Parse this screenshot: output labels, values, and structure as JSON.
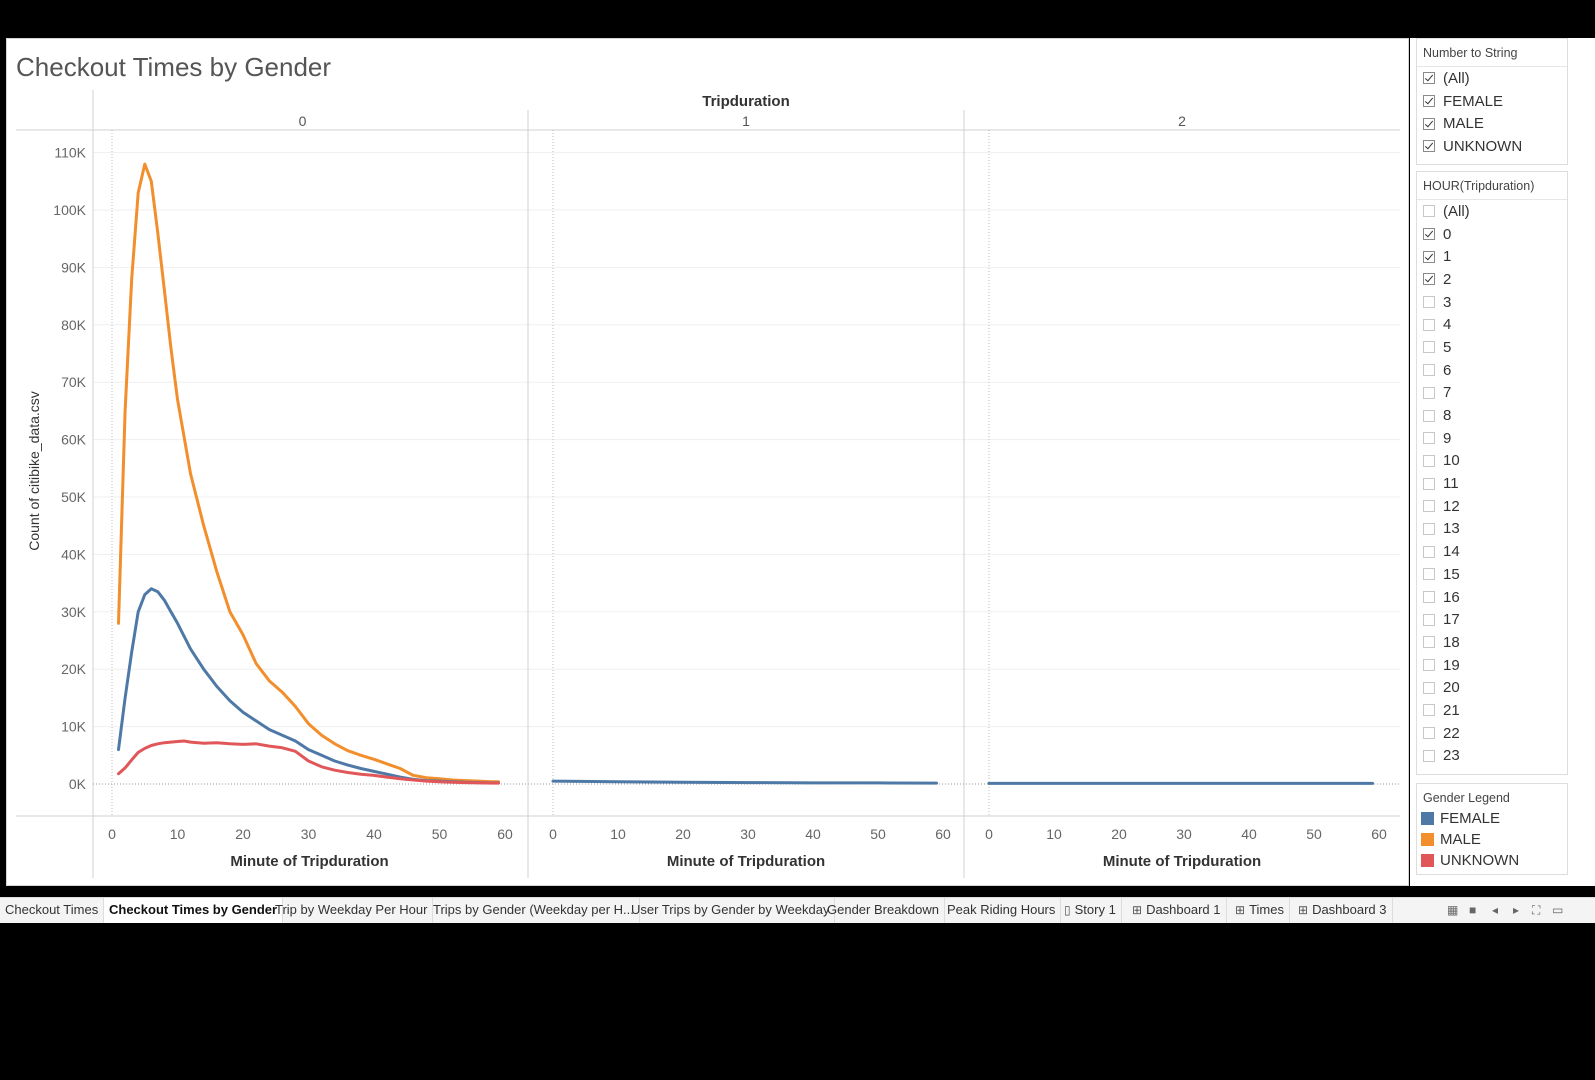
{
  "page": {
    "title": "Checkout Times by Gender"
  },
  "chart_data": {
    "type": "line",
    "title": "Checkout Times by Gender",
    "column_header": "Tripduration",
    "panels": [
      "0",
      "1",
      "2"
    ],
    "xlabel": "Minute of Tripduration",
    "ylabel": "Count of citibike_data.csv",
    "xlim": [
      0,
      60
    ],
    "ylim": [
      0,
      110000
    ],
    "x_ticks": [
      "0",
      "10",
      "20",
      "30",
      "40",
      "50",
      "60"
    ],
    "y_ticks": [
      "0K",
      "10K",
      "20K",
      "30K",
      "40K",
      "50K",
      "60K",
      "70K",
      "80K",
      "90K",
      "100K",
      "110K"
    ],
    "colors": {
      "FEMALE": "#4e79a7",
      "MALE": "#f28e2b",
      "UNKNOWN": "#e15759"
    },
    "series": [
      {
        "name": "MALE",
        "panel": "0",
        "x": [
          1,
          2,
          3,
          4,
          5,
          6,
          7,
          8,
          9,
          10,
          12,
          14,
          16,
          18,
          20,
          22,
          24,
          26,
          28,
          30,
          32,
          34,
          36,
          38,
          40,
          42,
          44,
          46,
          48,
          50,
          52,
          54,
          56,
          58,
          59
        ],
        "y": [
          28000,
          65000,
          88000,
          103000,
          108000,
          105000,
          96000,
          86000,
          76000,
          67000,
          54000,
          45000,
          37000,
          30000,
          26000,
          21000,
          18000,
          16000,
          13500,
          10500,
          8500,
          7000,
          5800,
          5000,
          4300,
          3500,
          2700,
          1500,
          1100,
          900,
          700,
          600,
          500,
          400,
          400
        ]
      },
      {
        "name": "FEMALE",
        "panel": "0",
        "x": [
          1,
          2,
          3,
          4,
          5,
          6,
          7,
          8,
          9,
          10,
          12,
          14,
          16,
          18,
          20,
          22,
          24,
          26,
          28,
          30,
          32,
          34,
          36,
          38,
          40,
          42,
          44,
          46,
          48,
          50,
          52,
          54,
          56,
          58,
          59
        ],
        "y": [
          6000,
          15000,
          23000,
          30000,
          33000,
          34000,
          33500,
          32000,
          30000,
          28000,
          23500,
          20000,
          17000,
          14500,
          12500,
          11000,
          9500,
          8500,
          7500,
          6000,
          5000,
          4000,
          3300,
          2700,
          2200,
          1700,
          1200,
          800,
          600,
          500,
          400,
          300,
          250,
          200,
          200
        ]
      },
      {
        "name": "UNKNOWN",
        "panel": "0",
        "x": [
          1,
          2,
          3,
          4,
          5,
          6,
          7,
          8,
          9,
          10,
          11,
          12,
          14,
          16,
          18,
          20,
          22,
          24,
          26,
          28,
          30,
          32,
          34,
          36,
          38,
          40,
          42,
          44,
          46,
          48,
          50,
          52,
          54,
          56,
          58,
          59
        ],
        "y": [
          1800,
          2800,
          4200,
          5500,
          6200,
          6700,
          7000,
          7200,
          7300,
          7400,
          7500,
          7300,
          7100,
          7200,
          7000,
          6900,
          7000,
          6600,
          6300,
          5700,
          4000,
          3000,
          2400,
          2000,
          1700,
          1500,
          1200,
          900,
          700,
          500,
          400,
          300,
          250,
          200,
          150,
          150
        ]
      },
      {
        "name": "FEMALE",
        "panel": "1",
        "x": [
          0,
          10,
          20,
          30,
          40,
          50,
          59
        ],
        "y": [
          500,
          400,
          300,
          250,
          200,
          200,
          150
        ]
      },
      {
        "name": "FEMALE",
        "panel": "2",
        "x": [
          0,
          10,
          20,
          30,
          40,
          50,
          59
        ],
        "y": [
          100,
          100,
          100,
          100,
          100,
          100,
          100
        ]
      }
    ]
  },
  "filters": [
    {
      "title": "Number to String",
      "items": [
        {
          "label": "(All)",
          "checked": true
        },
        {
          "label": "FEMALE",
          "checked": true
        },
        {
          "label": "MALE",
          "checked": true
        },
        {
          "label": "UNKNOWN",
          "checked": true
        }
      ]
    },
    {
      "title": "HOUR(Tripduration)",
      "items": [
        {
          "label": "(All)",
          "checked": false
        },
        {
          "label": "0",
          "checked": true
        },
        {
          "label": "1",
          "checked": true
        },
        {
          "label": "2",
          "checked": true
        },
        {
          "label": "3",
          "checked": false
        },
        {
          "label": "4",
          "checked": false
        },
        {
          "label": "5",
          "checked": false
        },
        {
          "label": "6",
          "checked": false
        },
        {
          "label": "7",
          "checked": false
        },
        {
          "label": "8",
          "checked": false
        },
        {
          "label": "9",
          "checked": false
        },
        {
          "label": "10",
          "checked": false
        },
        {
          "label": "11",
          "checked": false
        },
        {
          "label": "12",
          "checked": false
        },
        {
          "label": "13",
          "checked": false
        },
        {
          "label": "14",
          "checked": false
        },
        {
          "label": "15",
          "checked": false
        },
        {
          "label": "16",
          "checked": false
        },
        {
          "label": "17",
          "checked": false
        },
        {
          "label": "18",
          "checked": false
        },
        {
          "label": "19",
          "checked": false
        },
        {
          "label": "20",
          "checked": false
        },
        {
          "label": "21",
          "checked": false
        },
        {
          "label": "22",
          "checked": false
        },
        {
          "label": "23",
          "checked": false
        }
      ]
    }
  ],
  "legend": {
    "title": "Gender Legend",
    "items": [
      {
        "label": "FEMALE",
        "color": "#4e79a7"
      },
      {
        "label": "MALE",
        "color": "#f28e2b"
      },
      {
        "label": "UNKNOWN",
        "color": "#e15759"
      }
    ]
  },
  "tabs": [
    {
      "label": "Checkout Times",
      "active": false,
      "icon": ""
    },
    {
      "label": "Checkout Times by Gender",
      "active": true,
      "icon": ""
    },
    {
      "label": "Trip by Weekday Per Hour",
      "active": false,
      "icon": ""
    },
    {
      "label": "Trips by Gender (Weekday per H...",
      "active": false,
      "icon": ""
    },
    {
      "label": "User Trips by Gender by Weekday",
      "active": false,
      "icon": ""
    },
    {
      "label": "Gender Breakdown",
      "active": false,
      "icon": ""
    },
    {
      "label": "Peak Riding Hours",
      "active": false,
      "icon": ""
    },
    {
      "label": "Story 1",
      "active": false,
      "icon": "story-icon"
    },
    {
      "label": "Dashboard 1",
      "active": false,
      "icon": "dashboard-icon"
    },
    {
      "label": "Times",
      "active": false,
      "icon": "dashboard-icon"
    },
    {
      "label": "Dashboard 3",
      "active": false,
      "icon": "dashboard-icon"
    }
  ],
  "tab_controls": [
    "show-filmstrip-icon",
    "show-tabs-icon",
    "prev-sheet-icon",
    "next-sheet-icon",
    "fullscreen-icon",
    "presentation-icon"
  ]
}
